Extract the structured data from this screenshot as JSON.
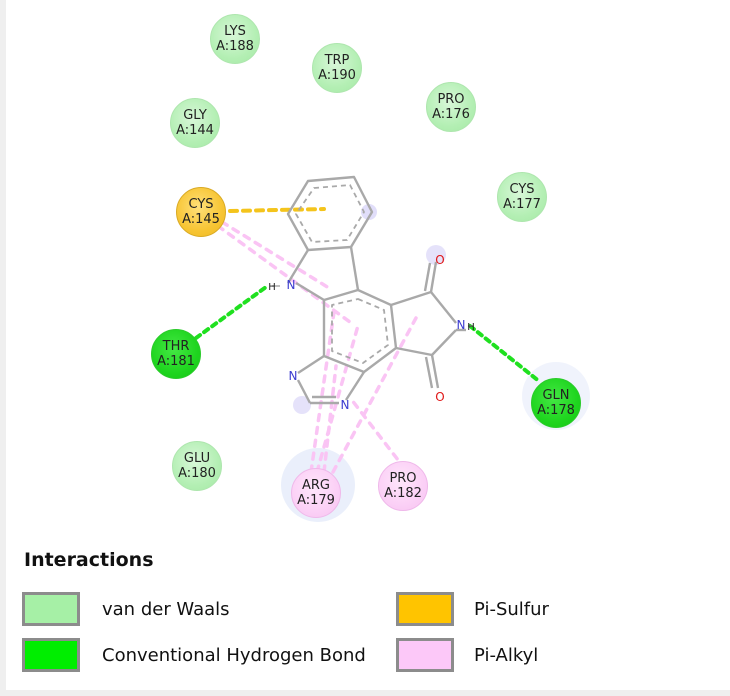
{
  "legend": {
    "title": "Interactions",
    "items": [
      {
        "label": "van der Waals",
        "color": "#a6f0a6"
      },
      {
        "label": "Conventional Hydrogen Bond",
        "color": "#00ee00"
      },
      {
        "label": "Pi-Sulfur",
        "color": "#ffc400"
      },
      {
        "label": "Pi-Alkyl",
        "color": "#fcc8f8"
      }
    ]
  },
  "residues": [
    {
      "name": "LYS",
      "id": "A:188",
      "type": "vdw"
    },
    {
      "name": "TRP",
      "id": "A:190",
      "type": "vdw"
    },
    {
      "name": "GLY",
      "id": "A:144",
      "type": "vdw"
    },
    {
      "name": "PRO",
      "id": "A:176",
      "type": "vdw"
    },
    {
      "name": "CYS",
      "id": "A:145",
      "type": "pi-sulfur"
    },
    {
      "name": "CYS",
      "id": "A:177",
      "type": "vdw"
    },
    {
      "name": "THR",
      "id": "A:181",
      "type": "hbond"
    },
    {
      "name": "GLN",
      "id": "A:178",
      "type": "hbond"
    },
    {
      "name": "GLU",
      "id": "A:180",
      "type": "vdw"
    },
    {
      "name": "ARG",
      "id": "A:179",
      "type": "pi-alkyl"
    },
    {
      "name": "PRO",
      "id": "A:182",
      "type": "pi-alkyl"
    }
  ],
  "atoms": {
    "indole_n": "N",
    "indole_h": "H",
    "imide_n": "N",
    "imide_h": "H",
    "imidazole_n1": "N",
    "imidazole_n2": "N",
    "oxygen_top": "O",
    "oxygen_bottom": "O"
  }
}
